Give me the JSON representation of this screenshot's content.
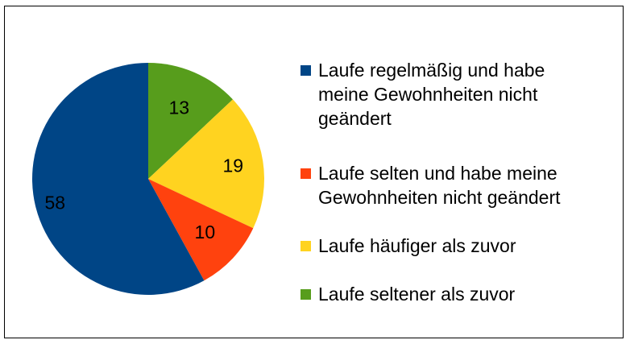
{
  "chart_data": {
    "type": "pie",
    "categories": [
      "Laufe regelmäßig und habe meine Gewohnheiten nicht geändert",
      "Laufe selten und habe meine Gewohnheiten nicht geändert",
      "Laufe häufiger als zuvor",
      "Laufe seltener als zuvor"
    ],
    "values": [
      58,
      10,
      19,
      13
    ],
    "colors": [
      "#004586",
      "#ff420e",
      "#ffd320",
      "#579d1c"
    ],
    "data_labels": [
      "58",
      "10",
      "19",
      "13"
    ],
    "legend_position": "right",
    "legend_lines": [
      [
        "Laufe regelmäßig und habe",
        "meine Gewohnheiten nicht",
        "geändert"
      ],
      [
        "Laufe selten und habe meine",
        "Gewohnheiten nicht geändert"
      ],
      [
        "Laufe häufiger als zuvor"
      ],
      [
        "Laufe seltener als zuvor"
      ]
    ]
  }
}
